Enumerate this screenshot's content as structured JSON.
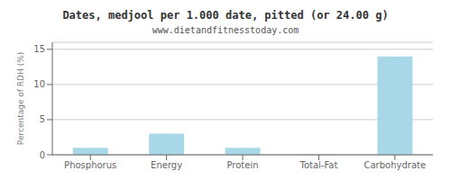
{
  "chart_data": {
    "type": "bar",
    "title": "Dates, medjool per 1.000 date, pitted (or 24.00 g)",
    "subtitle": "www.dietandfitnesstoday.com",
    "categories": [
      "Phosphorus",
      "Energy",
      "Protein",
      "Total-Fat",
      "Carbohydrate"
    ],
    "values": [
      1.0,
      3.0,
      1.0,
      0.05,
      14.0
    ],
    "color": "#a8d8e8",
    "ylabel": "Percentage of RDH (%)",
    "ylim": [
      0,
      16
    ],
    "yticks": [
      0,
      5,
      10,
      15
    ],
    "grid": true
  }
}
